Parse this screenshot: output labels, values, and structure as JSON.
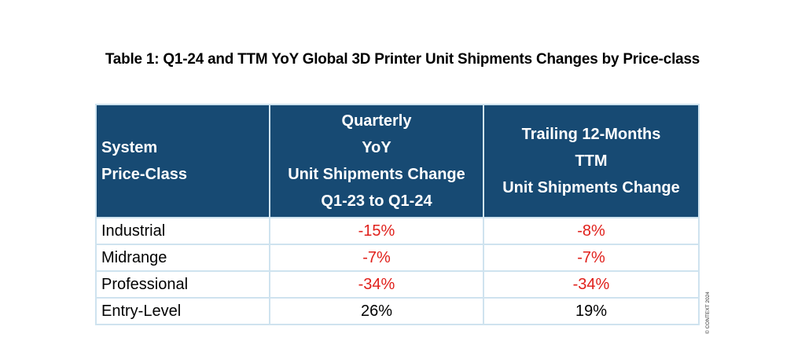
{
  "title": "Table 1: Q1-24 and TTM YoY Global 3D Printer Unit Shipments Changes by Price-class",
  "colors": {
    "header_bg": "#174a73",
    "header_text": "#ffffff",
    "grid": "#cfe3ef",
    "negative": "#e0201b",
    "positive": "#000000"
  },
  "chart_data": {
    "type": "table",
    "title": "Table 1: Q1-24 and TTM YoY Global 3D Printer Unit Shipments Changes by Price-class",
    "columns": [
      {
        "key": "system",
        "header_lines": [
          "System",
          "Price-Class"
        ]
      },
      {
        "key": "quarterly",
        "header_lines": [
          "Quarterly",
          "YoY",
          "Unit Shipments Change",
          "Q1-23 to Q1-24"
        ]
      },
      {
        "key": "ttm",
        "header_lines": [
          "Trailing 12-Months",
          "TTM",
          "Unit Shipments Change"
        ]
      }
    ],
    "rows": [
      {
        "label": "Industrial",
        "quarterly": "-15%",
        "ttm": "-8%",
        "quarterly_value": -15,
        "ttm_value": -8
      },
      {
        "label": "Midrange",
        "quarterly": "-7%",
        "ttm": "-7%",
        "quarterly_value": -7,
        "ttm_value": -7
      },
      {
        "label": "Professional",
        "quarterly": "-34%",
        "ttm": "-34%",
        "quarterly_value": -34,
        "ttm_value": -34
      },
      {
        "label": "Entry-Level",
        "quarterly": "26%",
        "ttm": "19%",
        "quarterly_value": 26,
        "ttm_value": 19
      }
    ]
  },
  "copyright": "© CONTEXT 2024"
}
